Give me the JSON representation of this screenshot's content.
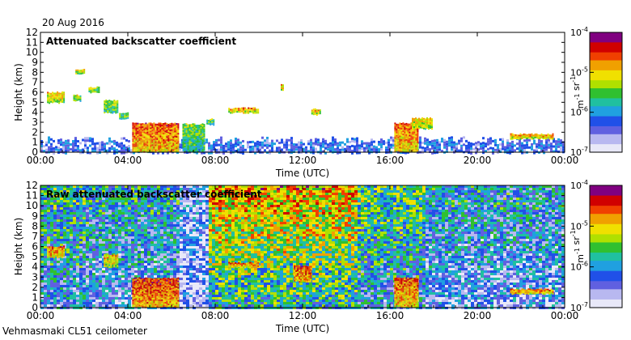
{
  "header": {
    "date": "20 Aug 2016"
  },
  "footer": {
    "instrument": "Vehmasmaki CL51 ceilometer"
  },
  "colorbar": {
    "colors": [
      "#e8e8f8",
      "#b8b8f0",
      "#6060e0",
      "#2050e8",
      "#20a0e0",
      "#20c0a0",
      "#30c030",
      "#b0e000",
      "#f0e000",
      "#f0a000",
      "#f04000",
      "#d00000",
      "#800080"
    ]
  },
  "chart_data": [
    {
      "type": "heatmap",
      "title": "Attenuated backscatter coefficient",
      "xlabel": "Time (UTC)",
      "ylabel": "Height (km)",
      "x_ticks": [
        "00:00",
        "04:00",
        "08:00",
        "12:00",
        "16:00",
        "20:00",
        "00:00"
      ],
      "y_ticks": [
        "0",
        "1",
        "2",
        "3",
        "4",
        "5",
        "6",
        "7",
        "8",
        "9",
        "10",
        "11",
        "12"
      ],
      "xlim_hours": [
        0,
        24
      ],
      "ylim_km": [
        0,
        12
      ],
      "colorbar_ticks": [
        "10",
        "10",
        "10",
        "10"
      ],
      "colorbar_exponents": [
        "-4",
        "-5",
        "-6",
        "-7"
      ],
      "colorbar_label": "m sr",
      "colorbar_label_exponents": [
        "-1",
        "-1"
      ],
      "colorbar_scale": "log",
      "colorbar_range": [
        1e-07,
        0.0001
      ],
      "grid": false,
      "features": [
        {
          "kind": "boundary_layer",
          "x0": 0,
          "x1": 24,
          "y0": 0,
          "y1": 1.6,
          "level": 0.25
        },
        {
          "kind": "cloud",
          "x0": 0.3,
          "x1": 1.1,
          "y0": 5.0,
          "y1": 6.1,
          "level": 0.7
        },
        {
          "kind": "cloud",
          "x0": 1.5,
          "x1": 1.8,
          "y0": 5.2,
          "y1": 5.8,
          "level": 0.6
        },
        {
          "kind": "cloud",
          "x0": 1.6,
          "x1": 2.0,
          "y0": 7.9,
          "y1": 8.4,
          "level": 0.7
        },
        {
          "kind": "cloud",
          "x0": 2.2,
          "x1": 2.7,
          "y0": 6.0,
          "y1": 6.6,
          "level": 0.6
        },
        {
          "kind": "cloud",
          "x0": 2.9,
          "x1": 3.5,
          "y0": 4.0,
          "y1": 5.3,
          "level": 0.6
        },
        {
          "kind": "cloud",
          "x0": 3.6,
          "x1": 4.0,
          "y0": 3.4,
          "y1": 4.0,
          "level": 0.55
        },
        {
          "kind": "cloud",
          "x0": 4.2,
          "x1": 6.3,
          "y0": 0.1,
          "y1": 3.0,
          "level": 0.82
        },
        {
          "kind": "cloud",
          "x0": 6.5,
          "x1": 7.5,
          "y0": 0.1,
          "y1": 2.9,
          "level": 0.55
        },
        {
          "kind": "cloud",
          "x0": 7.6,
          "x1": 7.9,
          "y0": 2.8,
          "y1": 3.4,
          "level": 0.55
        },
        {
          "kind": "cloud",
          "x0": 8.6,
          "x1": 10.0,
          "y0": 4.0,
          "y1": 4.5,
          "level": 0.75
        },
        {
          "kind": "cloud",
          "x0": 11.0,
          "x1": 11.1,
          "y0": 6.2,
          "y1": 6.9,
          "level": 0.7
        },
        {
          "kind": "cloud",
          "x0": 12.4,
          "x1": 12.8,
          "y0": 3.8,
          "y1": 4.4,
          "level": 0.7
        },
        {
          "kind": "cloud",
          "x0": 16.2,
          "x1": 17.3,
          "y0": 0.1,
          "y1": 3.0,
          "level": 0.8
        },
        {
          "kind": "cloud",
          "x0": 17.0,
          "x1": 17.9,
          "y0": 2.4,
          "y1": 3.5,
          "level": 0.7
        },
        {
          "kind": "cloud",
          "x0": 21.5,
          "x1": 23.5,
          "y0": 1.4,
          "y1": 1.9,
          "level": 0.75
        }
      ]
    },
    {
      "type": "heatmap",
      "title": "Raw attenuated backscatter coefficient",
      "xlabel": "Time (UTC)",
      "ylabel": "Height (km)",
      "x_ticks": [
        "00:00",
        "04:00",
        "08:00",
        "12:00",
        "16:00",
        "20:00",
        "00:00"
      ],
      "y_ticks": [
        "0",
        "1",
        "2",
        "3",
        "4",
        "5",
        "6",
        "7",
        "8",
        "9",
        "10",
        "11",
        "12"
      ],
      "xlim_hours": [
        0,
        24
      ],
      "ylim_km": [
        0,
        12
      ],
      "colorbar_ticks": [
        "10",
        "10",
        "10",
        "10"
      ],
      "colorbar_exponents": [
        "-4",
        "-5",
        "-6",
        "-7"
      ],
      "colorbar_label": "m sr",
      "colorbar_label_exponents": [
        "-1",
        "-1"
      ],
      "colorbar_scale": "log",
      "colorbar_range": [
        1e-07,
        0.0001
      ],
      "grid": false,
      "noise_regions": [
        {
          "x0": 0,
          "x1": 2.0,
          "level": 0.45
        },
        {
          "x0": 2.0,
          "x1": 6.3,
          "level": 0.38
        },
        {
          "x0": 6.3,
          "x1": 7.7,
          "level": 0.2
        },
        {
          "x0": 7.7,
          "x1": 14.5,
          "level": 0.72
        },
        {
          "x0": 14.5,
          "x1": 17.5,
          "level": 0.5
        },
        {
          "x0": 17.5,
          "x1": 24,
          "level": 0.35
        }
      ],
      "features": [
        {
          "kind": "cloud",
          "x0": 0.3,
          "x1": 1.1,
          "y0": 5.0,
          "y1": 6.1,
          "level": 0.8
        },
        {
          "kind": "cloud",
          "x0": 2.9,
          "x1": 3.5,
          "y0": 4.0,
          "y1": 5.3,
          "level": 0.7
        },
        {
          "kind": "cloud",
          "x0": 4.2,
          "x1": 6.3,
          "y0": 0.1,
          "y1": 3.0,
          "level": 0.85
        },
        {
          "kind": "cloud",
          "x0": 8.6,
          "x1": 10.0,
          "y0": 4.0,
          "y1": 4.5,
          "level": 0.8
        },
        {
          "kind": "cloud",
          "x0": 11.6,
          "x1": 12.4,
          "y0": 2.6,
          "y1": 4.2,
          "level": 0.85
        },
        {
          "kind": "cloud",
          "x0": 16.2,
          "x1": 17.3,
          "y0": 0.1,
          "y1": 3.0,
          "level": 0.8
        },
        {
          "kind": "cloud",
          "x0": 21.5,
          "x1": 23.5,
          "y0": 1.4,
          "y1": 1.9,
          "level": 0.8
        }
      ]
    }
  ]
}
